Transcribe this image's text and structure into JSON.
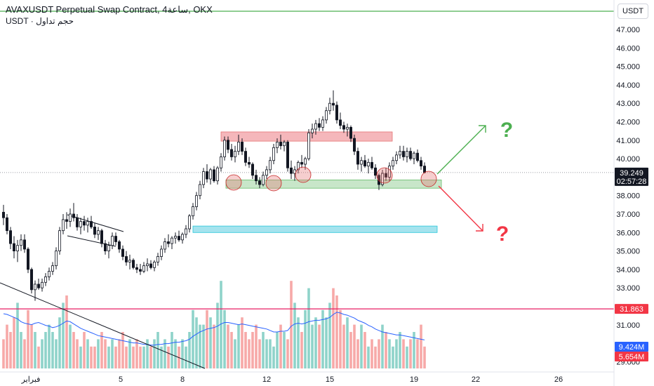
{
  "header": {
    "symbol_line": "AVAXUSDT Perpetual Swap Contract, 4ساعة, OKX",
    "volume_line": "USDT · حجم تداول"
  },
  "price_axis": {
    "currency_button": "USDT",
    "ticks": [
      "47.000",
      "46.000",
      "45.000",
      "44.000",
      "43.000",
      "42.000",
      "41.000",
      "40.000",
      "38.000",
      "37.000",
      "36.000",
      "35.000",
      "34.000",
      "33.000",
      "31.000",
      "29.000"
    ],
    "last_price": "39.249",
    "countdown": "02:57:28",
    "hline_price": "31.863",
    "vol_ma": "9.424M",
    "vol_value": "5.654M"
  },
  "time_axis": {
    "ticks": [
      "فبراير",
      "5",
      "8",
      "12",
      "15",
      "19",
      "22",
      "26"
    ]
  },
  "annotations": {
    "up_mark": "?",
    "down_mark": "?"
  },
  "colors": {
    "bull": "#26a69a",
    "bear": "#ef5350",
    "vol_bull": "#8fd3ca",
    "vol_bear": "#f7a9a8",
    "vol_ma": "#2962ff",
    "resistance_zone": "#f5b7bb",
    "support_zone": "#c8e6c9",
    "cyan_zone": "#a5e3ee",
    "top_line": "#4caf50",
    "hline": "#e91e63",
    "up_arrow": "#4caf50",
    "down_arrow": "#f23645"
  },
  "chart_data": {
    "type": "candlestick",
    "y_range": [
      28.8,
      47.6
    ],
    "candles": [
      [
        37.1,
        37.5,
        36.4,
        36.8
      ],
      [
        36.8,
        37.0,
        35.9,
        36.1
      ],
      [
        36.1,
        36.3,
        35.1,
        35.4
      ],
      [
        35.4,
        35.8,
        34.6,
        35.0
      ],
      [
        35.0,
        35.6,
        34.4,
        35.3
      ],
      [
        35.3,
        35.9,
        35.0,
        35.6
      ],
      [
        35.6,
        35.9,
        34.9,
        35.1
      ],
      [
        35.1,
        35.2,
        33.8,
        34.0
      ],
      [
        34.0,
        34.1,
        32.7,
        32.9
      ],
      [
        32.9,
        33.4,
        32.3,
        33.2
      ],
      [
        33.2,
        33.5,
        32.9,
        33.0
      ],
      [
        33.0,
        33.5,
        32.8,
        33.3
      ],
      [
        33.3,
        33.8,
        33.1,
        33.6
      ],
      [
        33.6,
        34.1,
        33.4,
        33.9
      ],
      [
        33.9,
        34.4,
        33.7,
        34.2
      ],
      [
        34.2,
        35.2,
        34.0,
        35.0
      ],
      [
        35.0,
        36.3,
        34.8,
        36.1
      ],
      [
        36.1,
        37.0,
        35.9,
        36.7
      ],
      [
        36.7,
        37.1,
        36.2,
        36.6
      ],
      [
        36.6,
        37.3,
        36.3,
        37.0
      ],
      [
        37.0,
        37.6,
        36.6,
        36.8
      ],
      [
        36.8,
        37.0,
        36.1,
        36.3
      ],
      [
        36.3,
        36.8,
        35.9,
        36.6
      ],
      [
        36.6,
        36.9,
        36.1,
        36.4
      ],
      [
        36.4,
        36.8,
        36.0,
        36.6
      ],
      [
        36.6,
        36.9,
        36.2,
        36.3
      ],
      [
        36.3,
        36.5,
        35.7,
        35.9
      ],
      [
        35.9,
        36.3,
        35.6,
        36.1
      ],
      [
        36.1,
        36.2,
        35.2,
        35.4
      ],
      [
        35.4,
        35.6,
        34.8,
        35.0
      ],
      [
        35.0,
        35.5,
        34.6,
        35.3
      ],
      [
        35.3,
        36.0,
        35.1,
        35.8
      ],
      [
        35.8,
        36.0,
        35.3,
        35.5
      ],
      [
        35.5,
        35.6,
        34.9,
        35.1
      ],
      [
        35.1,
        35.3,
        34.5,
        34.7
      ],
      [
        34.7,
        35.0,
        34.2,
        34.4
      ],
      [
        34.4,
        34.8,
        34.0,
        34.5
      ],
      [
        34.5,
        34.6,
        34.0,
        34.1
      ],
      [
        34.1,
        34.3,
        33.8,
        34.0
      ],
      [
        34.0,
        34.3,
        33.7,
        33.9
      ],
      [
        33.9,
        34.4,
        33.8,
        34.2
      ],
      [
        34.2,
        34.6,
        33.9,
        34.3
      ],
      [
        34.3,
        34.5,
        34.0,
        34.1
      ],
      [
        34.1,
        34.5,
        33.9,
        34.4
      ],
      [
        34.4,
        34.9,
        34.2,
        34.7
      ],
      [
        34.7,
        35.3,
        34.5,
        35.1
      ],
      [
        35.1,
        35.7,
        34.9,
        35.5
      ],
      [
        35.5,
        35.9,
        35.2,
        35.4
      ],
      [
        35.4,
        35.8,
        35.1,
        35.7
      ],
      [
        35.7,
        36.0,
        35.4,
        35.8
      ],
      [
        35.8,
        36.1,
        35.5,
        35.6
      ],
      [
        35.6,
        36.0,
        35.4,
        35.9
      ],
      [
        35.9,
        36.4,
        35.7,
        36.2
      ],
      [
        36.2,
        37.0,
        36.0,
        36.9
      ],
      [
        36.9,
        37.6,
        36.7,
        37.4
      ],
      [
        37.4,
        38.2,
        37.2,
        38.0
      ],
      [
        38.0,
        38.8,
        37.8,
        38.6
      ],
      [
        38.6,
        39.5,
        38.4,
        39.3
      ],
      [
        39.3,
        39.7,
        38.7,
        38.9
      ],
      [
        38.9,
        39.5,
        38.6,
        39.4
      ],
      [
        39.4,
        39.6,
        38.7,
        38.8
      ],
      [
        38.8,
        39.6,
        38.6,
        39.5
      ],
      [
        39.5,
        40.3,
        39.3,
        40.1
      ],
      [
        40.1,
        41.2,
        39.9,
        41.0
      ],
      [
        41.0,
        41.2,
        40.3,
        40.5
      ],
      [
        40.5,
        40.8,
        39.9,
        40.1
      ],
      [
        40.1,
        40.7,
        39.8,
        40.4
      ],
      [
        40.4,
        41.3,
        40.2,
        40.9
      ],
      [
        40.9,
        41.1,
        40.2,
        40.4
      ],
      [
        40.4,
        40.6,
        39.6,
        39.8
      ],
      [
        39.8,
        40.1,
        39.5,
        39.7
      ],
      [
        39.7,
        39.8,
        38.9,
        39.1
      ],
      [
        39.1,
        39.4,
        38.6,
        38.8
      ],
      [
        38.8,
        39.0,
        38.4,
        38.6
      ],
      [
        38.6,
        39.3,
        38.5,
        39.1
      ],
      [
        39.1,
        39.6,
        38.9,
        39.4
      ],
      [
        39.4,
        40.1,
        39.2,
        39.9
      ],
      [
        39.9,
        40.8,
        39.7,
        40.6
      ],
      [
        40.6,
        41.1,
        40.3,
        40.9
      ],
      [
        40.9,
        41.3,
        40.5,
        40.7
      ],
      [
        40.7,
        41.0,
        40.4,
        40.9
      ],
      [
        40.9,
        41.0,
        39.3,
        39.5
      ],
      [
        39.5,
        39.9,
        38.9,
        39.2
      ],
      [
        39.2,
        39.6,
        38.8,
        39.4
      ],
      [
        39.4,
        39.9,
        39.2,
        39.8
      ],
      [
        39.8,
        40.2,
        39.5,
        39.7
      ],
      [
        39.7,
        40.1,
        39.4,
        40.0
      ],
      [
        40.0,
        41.6,
        39.9,
        41.4
      ],
      [
        41.4,
        41.9,
        41.1,
        41.6
      ],
      [
        41.6,
        42.1,
        41.3,
        41.9
      ],
      [
        41.9,
        42.2,
        41.5,
        41.7
      ],
      [
        41.7,
        42.3,
        41.5,
        42.1
      ],
      [
        42.1,
        42.8,
        41.9,
        42.6
      ],
      [
        42.6,
        43.3,
        42.4,
        43.0
      ],
      [
        43.0,
        43.7,
        42.6,
        42.9
      ],
      [
        42.9,
        43.1,
        41.9,
        42.1
      ],
      [
        42.1,
        42.5,
        41.6,
        41.8
      ],
      [
        41.8,
        42.0,
        41.4,
        41.6
      ],
      [
        41.6,
        41.9,
        41.2,
        41.7
      ],
      [
        41.7,
        41.8,
        40.9,
        41.1
      ],
      [
        41.1,
        41.3,
        40.2,
        40.4
      ],
      [
        40.4,
        40.6,
        39.4,
        39.7
      ],
      [
        39.7,
        40.1,
        39.3,
        39.9
      ],
      [
        39.9,
        40.2,
        39.5,
        39.6
      ],
      [
        39.6,
        40.0,
        39.2,
        39.8
      ],
      [
        39.8,
        40.1,
        39.4,
        39.5
      ],
      [
        39.5,
        39.7,
        38.9,
        39.1
      ],
      [
        39.1,
        39.2,
        38.3,
        38.6
      ],
      [
        38.6,
        39.4,
        38.5,
        39.2
      ],
      [
        39.2,
        39.5,
        38.8,
        39.0
      ],
      [
        39.0,
        39.8,
        38.8,
        39.6
      ],
      [
        39.6,
        40.1,
        39.4,
        39.9
      ],
      [
        39.9,
        40.4,
        39.7,
        40.2
      ],
      [
        40.2,
        40.7,
        40.0,
        40.4
      ],
      [
        40.4,
        40.7,
        39.9,
        40.1
      ],
      [
        40.1,
        40.6,
        39.8,
        40.4
      ],
      [
        40.4,
        40.6,
        39.9,
        40.0
      ],
      [
        40.0,
        40.4,
        39.7,
        40.3
      ],
      [
        40.3,
        40.5,
        39.8,
        39.9
      ],
      [
        39.9,
        40.1,
        39.4,
        39.6
      ],
      [
        39.6,
        39.8,
        39.2,
        39.249
      ]
    ],
    "volume_range": [
      0,
      12.5
    ],
    "volumes": [
      4,
      6,
      5,
      7,
      9,
      5,
      4,
      8,
      6,
      5,
      3,
      4,
      5,
      6,
      5,
      4,
      7,
      9,
      10,
      6,
      5,
      4,
      3,
      5,
      4,
      3,
      3,
      4,
      5,
      4,
      3,
      4,
      3,
      4,
      5,
      3,
      4,
      3,
      4,
      3,
      3,
      4,
      3,
      4,
      5,
      3,
      4,
      3,
      5,
      4,
      3,
      4,
      3,
      5,
      8,
      7,
      6,
      6,
      8,
      7,
      6,
      9,
      12,
      8,
      6,
      5,
      4,
      6,
      7,
      5,
      4,
      5,
      6,
      4,
      5,
      4,
      4,
      3,
      5,
      6,
      5,
      4,
      12,
      9,
      7,
      5,
      8,
      11,
      6,
      7,
      6,
      8,
      7,
      9,
      11,
      10,
      8,
      6,
      7,
      5,
      6,
      4,
      6,
      5,
      3,
      4,
      3,
      4,
      6,
      5,
      4,
      3,
      4,
      5,
      4,
      3,
      4,
      5,
      4,
      6,
      3
    ],
    "volume_ma": [
      7.5,
      7.4,
      7.2,
      7.0,
      6.8,
      6.4,
      6.2,
      6.1,
      6.0,
      6.2,
      6.3,
      6.1,
      5.9,
      5.8,
      5.6,
      5.7,
      5.9,
      6.2,
      6.5,
      6.4,
      6.1,
      5.8,
      5.5,
      5.3,
      5.1,
      4.9,
      4.7,
      4.5,
      4.4,
      4.3,
      4.2,
      4.1,
      4.0,
      3.9,
      3.8,
      3.7,
      3.6,
      3.5,
      3.5,
      3.4,
      3.3,
      3.3,
      3.2,
      3.2,
      3.3,
      3.3,
      3.4,
      3.4,
      3.5,
      3.6,
      3.6,
      3.7,
      3.8,
      4.0,
      4.4,
      4.7,
      5.0,
      5.2,
      5.4,
      5.5,
      5.6,
      5.8,
      6.1,
      6.3,
      6.3,
      6.2,
      6.1,
      6.0,
      6.1,
      6.0,
      5.9,
      5.8,
      5.7,
      5.6,
      5.5,
      5.4,
      5.2,
      5.0,
      5.0,
      5.1,
      5.1,
      5.2,
      5.8,
      6.1,
      6.2,
      6.1,
      6.2,
      6.4,
      6.5,
      6.6,
      6.6,
      6.7,
      6.8,
      7.0,
      7.4,
      7.7,
      7.6,
      7.4,
      7.3,
      7.1,
      6.9,
      6.6,
      6.4,
      6.2,
      5.9,
      5.7,
      5.4,
      5.2,
      5.0,
      4.9,
      4.8,
      4.7,
      4.6,
      4.6,
      4.5,
      4.4,
      4.3,
      4.2,
      4.1,
      4.0,
      3.9
    ]
  }
}
